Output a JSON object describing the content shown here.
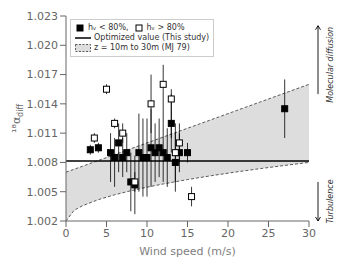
{
  "chart_data": {
    "type": "scatter",
    "xlabel": "Wind speed (m/s)",
    "ylabel": "¹⁸αdiff",
    "xlim": [
      0,
      30
    ],
    "ylim": [
      1.002,
      1.023
    ],
    "xticks": [
      0,
      5,
      10,
      15,
      20,
      25,
      30
    ],
    "yticks": [
      1.002,
      1.005,
      1.008,
      1.011,
      1.014,
      1.017,
      {
        "value": 1.02,
        "label": "1.020"
      },
      1.023
    ],
    "grid": false,
    "legend": "upper left",
    "series": [
      {
        "name": "hᵥ < 80%,",
        "type": "scatter",
        "color": "#000000",
        "marker": "square",
        "x": [
          3.0,
          4.0,
          5.5,
          6.0,
          6.5,
          7.0,
          7.5,
          8.0,
          8.5,
          9.0,
          9.5,
          10.0,
          10.5,
          11.0,
          11.5,
          12.0,
          12.5,
          13.0,
          13.5,
          14.0,
          15.0,
          27.0
        ],
        "values": [
          1.0093,
          1.0095,
          1.009,
          1.0085,
          1.01,
          1.0085,
          1.009,
          1.006,
          1.0057,
          1.009,
          1.0085,
          1.0085,
          1.0095,
          1.009,
          1.0095,
          1.009,
          1.0085,
          1.012,
          1.008,
          1.009,
          1.009,
          1.0135
        ],
        "yerr_lo": [
          0.0005,
          0.0005,
          0.003,
          0.003,
          0.003,
          0.002,
          0.002,
          0.003,
          0.003,
          0.004,
          0.004,
          0.004,
          0.004,
          0.003,
          0.003,
          0.003,
          0.003,
          0.003,
          0.003,
          0.002,
          0.001,
          0.003
        ],
        "yerr_hi": [
          0.0005,
          0.0005,
          0.002,
          0.002,
          0.002,
          0.002,
          0.002,
          0.003,
          0.003,
          0.004,
          0.004,
          0.004,
          0.004,
          0.003,
          0.003,
          0.003,
          0.003,
          0.003,
          0.003,
          0.002,
          0.001,
          0.003
        ]
      },
      {
        "name": "hᵥ > 80%",
        "type": "scatter",
        "color": "#000000",
        "marker": "square-open",
        "x": [
          3.5,
          5.0,
          6.0,
          7.0,
          8.5,
          10.5,
          12.0,
          13.0,
          13.5,
          14.0,
          15.5
        ],
        "values": [
          1.0105,
          1.0155,
          1.012,
          1.011,
          1.006,
          1.014,
          1.016,
          1.0145,
          1.009,
          1.01,
          1.0045
        ],
        "yerr_lo": [
          0.0005,
          0.0005,
          0.0005,
          0.001,
          0.001,
          0.003,
          0.004,
          0.004,
          0.003,
          0.002,
          0.001
        ],
        "yerr_hi": [
          0.0005,
          0.0005,
          0.0005,
          0.001,
          0.001,
          0.003,
          0.002,
          0.001,
          0.003,
          0.002,
          0.001
        ]
      },
      {
        "name": "Optimized value (This study)",
        "type": "hline",
        "color": "#000000",
        "values": [
          1.00815
        ]
      },
      {
        "name": "z = 10m to 30m (MJ 79)",
        "type": "band",
        "line_style": "dashed",
        "x": [
          0,
          1,
          2,
          4,
          6,
          8,
          10,
          12,
          15,
          18,
          21,
          24,
          27,
          30
        ],
        "lower": [
          1.002,
          1.003095,
          1.003549,
          1.004191,
          1.004683,
          1.005098,
          1.005464,
          1.005795,
          1.006243,
          1.006648,
          1.00702,
          1.007367,
          1.007692,
          1.008
        ],
        "upper": [
          1.007,
          1.0073,
          1.0076,
          1.0082,
          1.0088,
          1.0094,
          1.01,
          1.0106,
          1.0115,
          1.0124,
          1.0133,
          1.0142,
          1.0151,
          1.016
        ]
      }
    ],
    "annotations": [
      {
        "text": "Molecular diffusion",
        "y_from": 1.015,
        "y_to": 1.022,
        "y_text": 1.018
      },
      {
        "text": "Turbulence",
        "y_from": 1.006,
        "y_to": 1.002,
        "y_text": 1.004
      }
    ]
  }
}
